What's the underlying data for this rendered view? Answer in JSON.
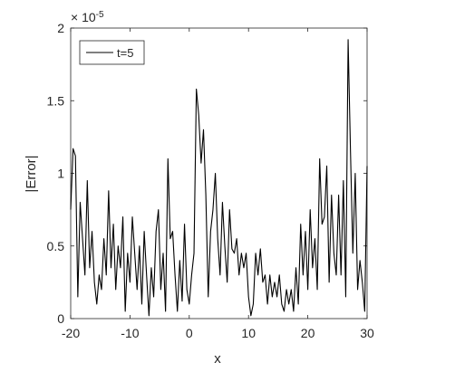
{
  "chart_data": {
    "type": "line",
    "title": "",
    "xlabel": "x",
    "ylabel": "|Error|",
    "xlim": [
      -20,
      30
    ],
    "ylim": [
      0,
      2
    ],
    "y_exponent_label": "× 10",
    "y_exponent": "-5",
    "xticks": [
      "-20",
      "-10",
      "0",
      "10",
      "20",
      "30"
    ],
    "yticks": [
      "0",
      "0.5",
      "1",
      "1.5",
      "2"
    ],
    "grid": false,
    "legend_position": "top-left",
    "line_color": "#000000",
    "series": [
      {
        "name": "t=5",
        "x": [
          -20,
          -19.6,
          -19.2,
          -18.8,
          -18.4,
          -18,
          -17.6,
          -17.2,
          -16.8,
          -16.4,
          -16,
          -15.6,
          -15.2,
          -14.8,
          -14.4,
          -14,
          -13.6,
          -13.2,
          -12.8,
          -12.4,
          -12,
          -11.6,
          -11.2,
          -10.8,
          -10.4,
          -10,
          -9.6,
          -9.2,
          -8.8,
          -8.4,
          -8,
          -7.6,
          -7.2,
          -6.8,
          -6.4,
          -6,
          -5.6,
          -5.2,
          -4.8,
          -4.4,
          -4,
          -3.6,
          -3.2,
          -2.8,
          -2.4,
          -2,
          -1.6,
          -1.2,
          -0.8,
          -0.4,
          0,
          0.4,
          0.8,
          1.2,
          1.6,
          2,
          2.4,
          2.8,
          3.2,
          3.6,
          4,
          4.4,
          4.8,
          5.2,
          5.6,
          6,
          6.4,
          6.8,
          7.2,
          7.6,
          8,
          8.4,
          8.8,
          9.2,
          9.6,
          10,
          10.4,
          10.8,
          11.2,
          11.6,
          12,
          12.4,
          12.8,
          13.2,
          13.6,
          14,
          14.4,
          14.8,
          15.2,
          15.6,
          16,
          16.4,
          16.8,
          17.2,
          17.6,
          18,
          18.4,
          18.8,
          19.2,
          19.6,
          20,
          20.4,
          20.8,
          21.2,
          21.6,
          22,
          22.4,
          22.8,
          23.2,
          23.6,
          24,
          24.4,
          24.8,
          25.2,
          25.6,
          26,
          26.4,
          26.8,
          27.2,
          27.6,
          28,
          28.4,
          28.8,
          29.2,
          29.6,
          30
        ],
        "y": [
          0.75,
          1.17,
          1.12,
          0.15,
          0.8,
          0.55,
          0.3,
          0.95,
          0.35,
          0.6,
          0.25,
          0.1,
          0.3,
          0.2,
          0.55,
          0.3,
          0.88,
          0.35,
          0.65,
          0.2,
          0.5,
          0.35,
          0.7,
          0.05,
          0.45,
          0.25,
          0.7,
          0.45,
          0.2,
          0.5,
          0.1,
          0.6,
          0.3,
          0.02,
          0.35,
          0.15,
          0.6,
          0.75,
          0.2,
          0.45,
          0.05,
          1.1,
          0.55,
          0.6,
          0.3,
          0.05,
          0.4,
          0.12,
          0.65,
          0.2,
          0.1,
          0.3,
          0.45,
          1.58,
          1.4,
          1.07,
          1.3,
          0.85,
          0.15,
          0.6,
          0.75,
          1.0,
          0.55,
          0.3,
          0.8,
          0.5,
          0.25,
          0.75,
          0.48,
          0.45,
          0.55,
          0.3,
          0.45,
          0.35,
          0.45,
          0.15,
          0.02,
          0.1,
          0.45,
          0.3,
          0.48,
          0.25,
          0.3,
          0.1,
          0.3,
          0.15,
          0.25,
          0.15,
          0.3,
          0.1,
          0.05,
          0.2,
          0.1,
          0.2,
          0.05,
          0.35,
          0.1,
          0.65,
          0.3,
          0.6,
          0.2,
          0.75,
          0.35,
          0.55,
          0.2,
          1.1,
          0.65,
          0.7,
          1.05,
          0.25,
          0.85,
          0.45,
          0.3,
          0.85,
          0.3,
          0.95,
          0.15,
          1.92,
          1.15,
          0.45,
          1.0,
          0.2,
          0.4,
          0.25,
          0.05,
          1.05
        ]
      }
    ]
  }
}
